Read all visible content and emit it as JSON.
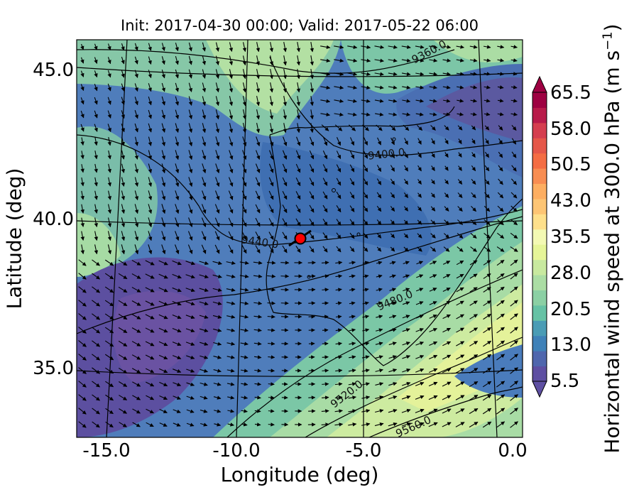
{
  "chart_data": {
    "type": "heatmap",
    "title": "Init: 2017-04-30 00:00; Valid: 2017-05-22 06:00",
    "xlabel": "Longitude (deg)",
    "ylabel": "Latitude (deg)",
    "x_ticks": [
      "-15.0",
      "-10.0",
      "-5.0",
      "0.0"
    ],
    "y_ticks": [
      "45.0",
      "40.0",
      "35.0"
    ],
    "xlim": [
      -16,
      0.2
    ],
    "ylim": [
      32.5,
      46
    ],
    "colorbar": {
      "label_main": "Horizontal wind speed at 300.0 hPa (m s",
      "label_exp": "−1",
      "label_end": ")",
      "ticks": [
        "65.5",
        "58.0",
        "50.5",
        "43.0",
        "35.5",
        "28.0",
        "20.5",
        "13.0",
        "5.5"
      ],
      "range": [
        5.5,
        65.5
      ],
      "extend": "both",
      "colormap": "Spectral_r"
    },
    "contour_field": "geopotential height (m)",
    "contour_labels": [
      "9360.0",
      "9400.0",
      "9440.0",
      "9480.0",
      "9520.0",
      "9560.0"
    ],
    "marker": {
      "lon": -7.6,
      "lat": 39.3,
      "color": "#ff0000"
    },
    "colors": {
      "low": "#5e4fa2",
      "mid": "#abdda4",
      "high": "#9e0142"
    }
  }
}
